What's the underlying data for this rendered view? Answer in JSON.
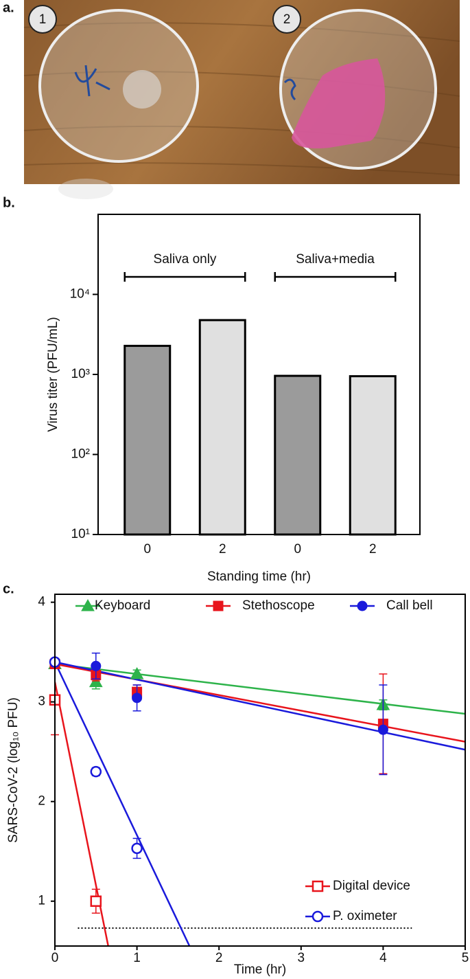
{
  "panel_labels": [
    "a.",
    "b.",
    "c."
  ],
  "photo": {
    "labels": [
      "1",
      "2"
    ]
  },
  "chart_data": [
    {
      "type": "bar",
      "y_label": "Virus titer (PFU/mL)",
      "x_label": "Standing time (hr)",
      "categories": [
        "0",
        "2",
        "0",
        "2"
      ],
      "values": [
        2275,
        4770,
        960,
        950
      ],
      "colors": [
        "#9b9b9b",
        "#e0e0e0",
        "#9b9b9b",
        "#e0e0e0"
      ],
      "groups": [
        "Saliva only",
        "Saliva+media"
      ],
      "log_scale": true,
      "ylim": [
        10,
        100000
      ],
      "yticks": [
        {
          "value": 10,
          "label": "10¹"
        },
        {
          "value": 100,
          "label": "10²"
        },
        {
          "value": 1000,
          "label": "10³"
        },
        {
          "value": 10000,
          "label": "10⁴"
        }
      ]
    },
    {
      "type": "scatter",
      "x_label": "Time (hr)",
      "y_label": "SARS-CoV-2 (log₁₀ PFU)",
      "xlim": [
        0,
        5
      ],
      "ylim": [
        0.55,
        4.08
      ],
      "xticks": [
        0,
        1,
        2,
        3,
        4,
        5
      ],
      "yticks": [
        1,
        2,
        3,
        4
      ],
      "reference_line": {
        "y": 0.73,
        "x": [
          0.28,
          4.35
        ]
      },
      "series": [
        {
          "name": "Keyboard",
          "color": "#2db34a",
          "marker": "triangle",
          "filled": true,
          "legend": "top",
          "x": [
            0,
            0.5,
            1,
            4
          ],
          "values": [
            3.38,
            3.2,
            3.28,
            2.97
          ],
          "errors": [
            0.03,
            0.07,
            0.04,
            0.05
          ],
          "fit": {
            "x": [
              0,
              5
            ],
            "y": [
              3.38,
              2.88
            ]
          }
        },
        {
          "name": "Stethoscope",
          "color": "#e8141c",
          "marker": "square",
          "filled": true,
          "legend": "top",
          "x": [
            0,
            0.5,
            1,
            4
          ],
          "values": [
            3.38,
            3.27,
            3.1,
            2.78
          ],
          "errors": [
            0.03,
            0.06,
            0.07,
            0.5
          ],
          "fit": {
            "x": [
              0,
              5
            ],
            "y": [
              3.38,
              2.6
            ]
          }
        },
        {
          "name": "Call bell",
          "color": "#1a1adb",
          "marker": "circle",
          "filled": true,
          "legend": "top",
          "x": [
            0,
            0.5,
            1,
            4
          ],
          "values": [
            3.4,
            3.36,
            3.04,
            2.72
          ],
          "errors": [
            0.03,
            0.13,
            0.13,
            0.45
          ],
          "fit": {
            "x": [
              0,
              5
            ],
            "y": [
              3.4,
              2.52
            ]
          }
        },
        {
          "name": "Digital device",
          "color": "#e8141c",
          "marker": "square",
          "filled": false,
          "legend": "bottom",
          "x": [
            0,
            0.5
          ],
          "values": [
            3.02,
            1.0
          ],
          "errors": [
            0.35,
            0.12
          ],
          "fit": {
            "x": [
              0,
              0.65
            ],
            "y": [
              3.2,
              0.55
            ]
          }
        },
        {
          "name": "P. oximeter",
          "color": "#1a1adb",
          "marker": "circle",
          "filled": false,
          "legend": "bottom",
          "x": [
            0,
            0.5,
            1
          ],
          "values": [
            3.4,
            2.3,
            1.53
          ],
          "errors": [
            0.03,
            0.04,
            0.1
          ],
          "fit": {
            "x": [
              0,
              1.64
            ],
            "y": [
              3.4,
              0.55
            ]
          }
        }
      ]
    }
  ]
}
